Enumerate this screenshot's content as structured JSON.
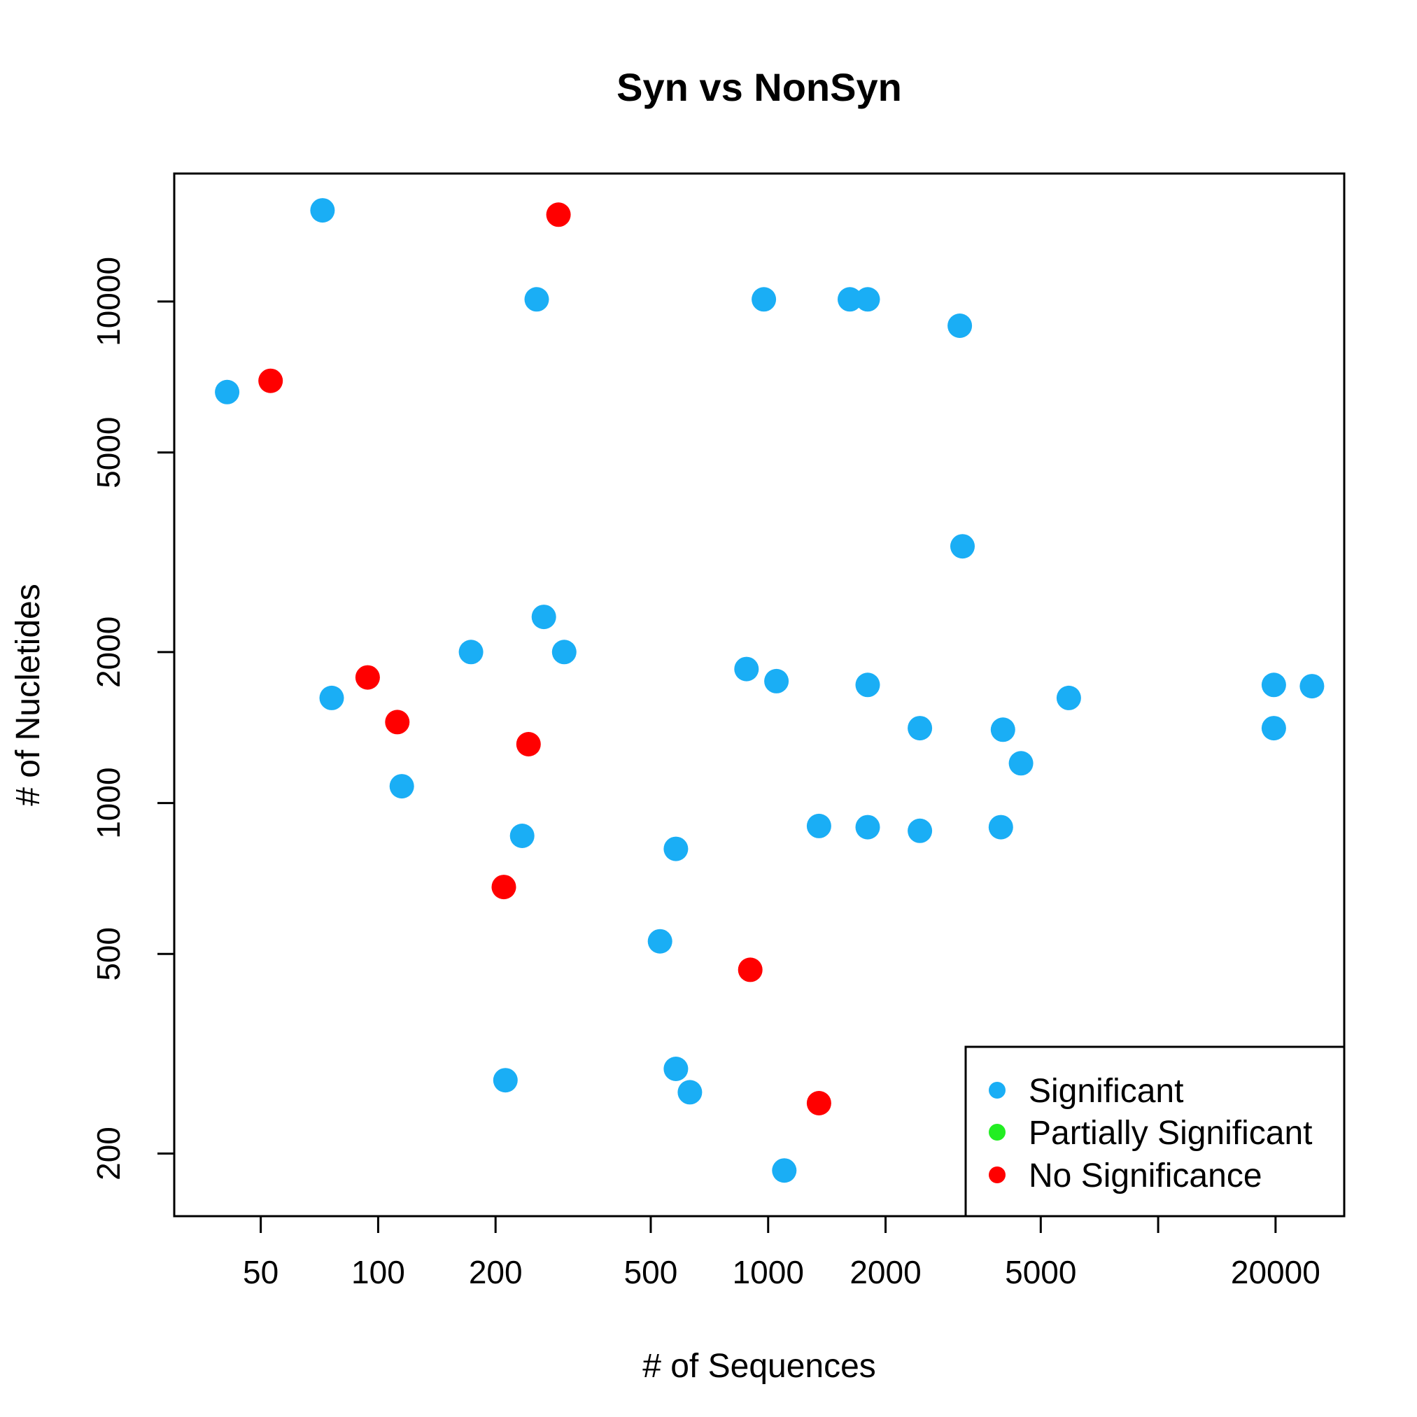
{
  "chart_data": {
    "type": "scatter",
    "title": "Syn vs NonSyn",
    "xlabel": "# of Sequences",
    "ylabel": "# of Nucletides",
    "x_scale": "log",
    "y_scale": "log",
    "xlim": [
      30,
      30000
    ],
    "ylim": [
      150,
      18000
    ],
    "x_ticks": [
      50,
      100,
      200,
      500,
      1000,
      2000,
      5000,
      10000,
      20000
    ],
    "x_tick_labels": [
      "50",
      "100",
      "200",
      "500",
      "1000",
      "2000",
      "5000",
      "",
      "20000"
    ],
    "y_ticks": [
      200,
      500,
      1000,
      2000,
      5000,
      10000
    ],
    "y_tick_labels": [
      "200",
      "500",
      "1000",
      "2000",
      "5000",
      "10000"
    ],
    "grid": false,
    "legend_position": "bottom-right",
    "series": [
      {
        "name": "Significant",
        "color": "#1aaef5",
        "points": [
          [
            41,
            6600
          ],
          [
            72,
            15200
          ],
          [
            76,
            1620
          ],
          [
            115,
            1080
          ],
          [
            173,
            2000
          ],
          [
            212,
            280
          ],
          [
            234,
            860
          ],
          [
            255,
            10100
          ],
          [
            266,
            2350
          ],
          [
            300,
            2000
          ],
          [
            528,
            530
          ],
          [
            580,
            295
          ],
          [
            580,
            810
          ],
          [
            630,
            265
          ],
          [
            880,
            1850
          ],
          [
            975,
            10100
          ],
          [
            1050,
            1750
          ],
          [
            1100,
            185
          ],
          [
            1350,
            900
          ],
          [
            1620,
            10100
          ],
          [
            1800,
            10100
          ],
          [
            1800,
            1720
          ],
          [
            1800,
            895
          ],
          [
            2450,
            1410
          ],
          [
            2450,
            880
          ],
          [
            3100,
            8950
          ],
          [
            3150,
            3250
          ],
          [
            3950,
            895
          ],
          [
            4000,
            1400
          ],
          [
            4450,
            1200
          ],
          [
            5900,
            1620
          ],
          [
            19800,
            1720
          ],
          [
            19800,
            1410
          ],
          [
            24800,
            1710
          ]
        ]
      },
      {
        "name": "Partially Significant",
        "color": "#22ee22",
        "points": []
      },
      {
        "name": "No Significance",
        "color": "#ff0000",
        "points": [
          [
            53,
            6950
          ],
          [
            94,
            1780
          ],
          [
            112,
            1450
          ],
          [
            210,
            680
          ],
          [
            243,
            1310
          ],
          [
            290,
            14900
          ],
          [
            900,
            465
          ],
          [
            1350,
            252
          ]
        ]
      }
    ]
  }
}
